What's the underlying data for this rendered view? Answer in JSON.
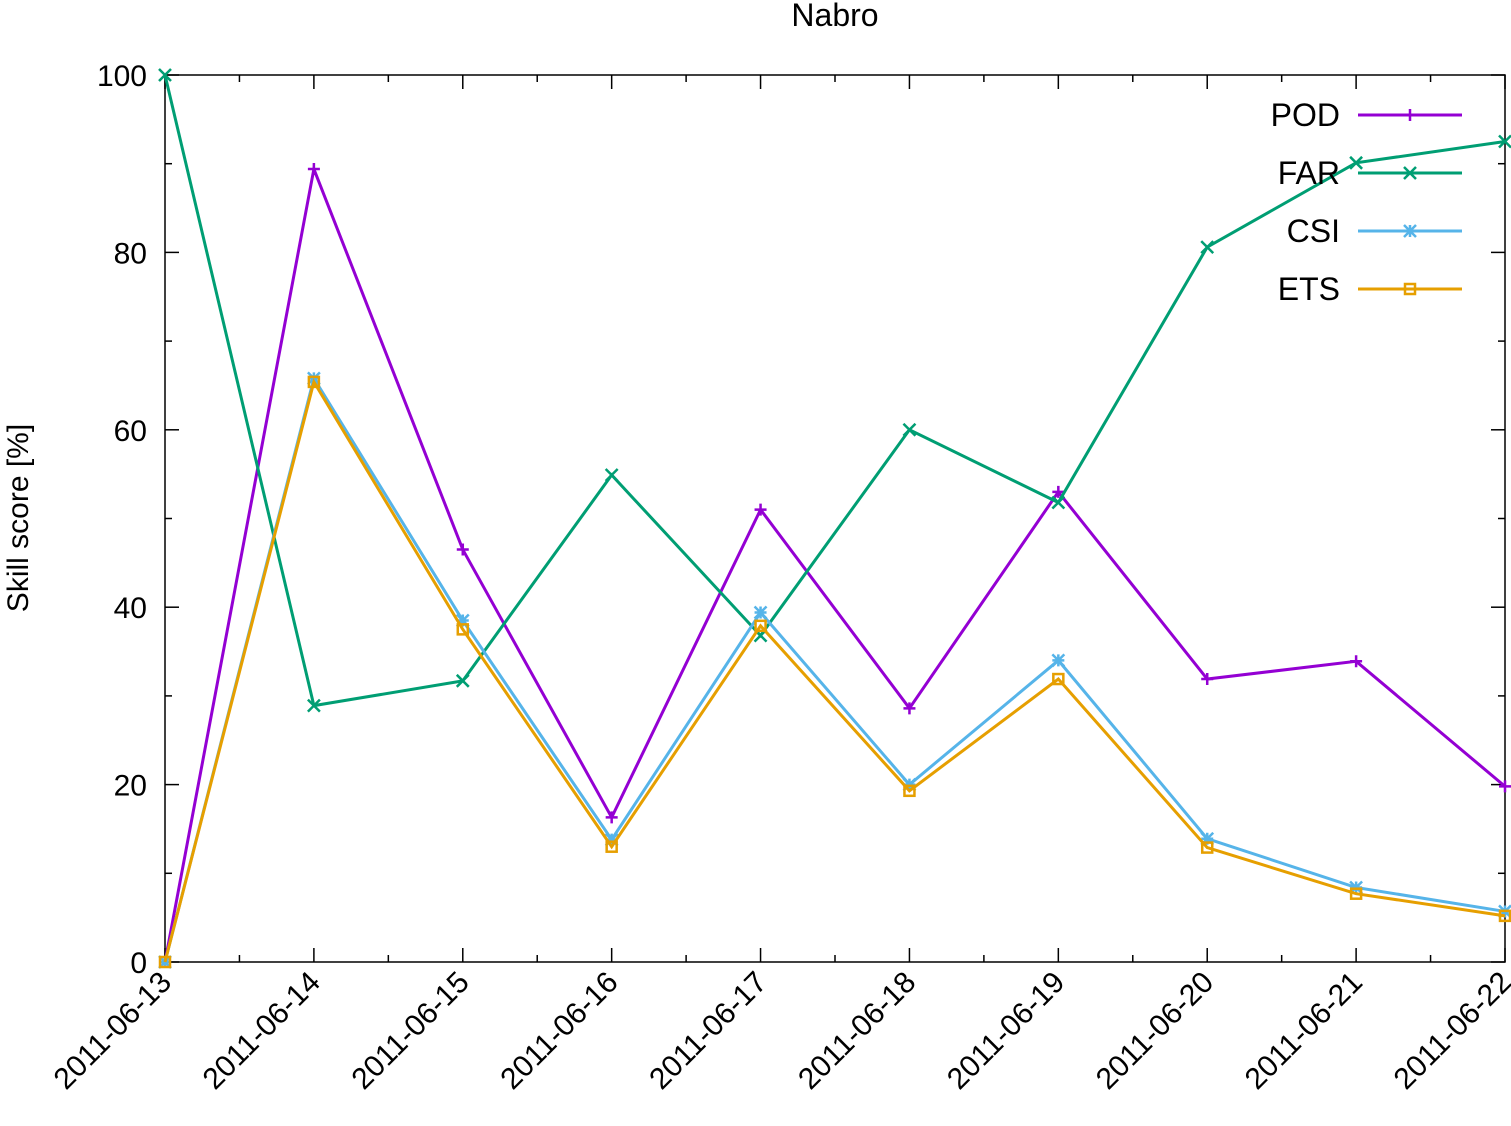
{
  "chart_data": {
    "type": "line",
    "title": "Nabro",
    "xlabel": "",
    "ylabel": "Skill score [%]",
    "categories": [
      "2011-06-13",
      "2011-06-14",
      "2011-06-15",
      "2011-06-16",
      "2011-06-17",
      "2011-06-18",
      "2011-06-19",
      "2011-06-20",
      "2011-06-21",
      "2011-06-22"
    ],
    "y_ticks": [
      0,
      20,
      40,
      60,
      80,
      100
    ],
    "ylim": [
      0,
      100
    ],
    "grid": false,
    "legend_position": "top-right",
    "series": [
      {
        "name": "POD",
        "color": "#9400d3",
        "marker": "plus",
        "values": [
          0,
          89.4,
          46.5,
          16.3,
          51.0,
          28.6,
          53.0,
          31.9,
          33.9,
          19.8
        ]
      },
      {
        "name": "FAR",
        "color": "#009e73",
        "marker": "cross",
        "values": [
          100,
          28.9,
          31.7,
          54.9,
          36.8,
          60.0,
          51.8,
          80.6,
          90.1,
          92.5
        ]
      },
      {
        "name": "CSI",
        "color": "#56b4e9",
        "marker": "star",
        "values": [
          0,
          65.8,
          38.5,
          13.8,
          39.4,
          20.0,
          34.0,
          13.9,
          8.4,
          5.7
        ]
      },
      {
        "name": "ETS",
        "color": "#e69f00",
        "marker": "square",
        "values": [
          0,
          65.4,
          37.5,
          13.0,
          37.9,
          19.3,
          31.9,
          12.9,
          7.7,
          5.2
        ]
      }
    ]
  }
}
